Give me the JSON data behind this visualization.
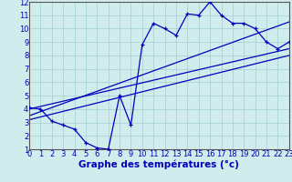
{
  "xlabel": "Graphe des températures (°c)",
  "background_color": "#d0ecec",
  "grid_color": "#a8d4d4",
  "line_color": "#0000bb",
  "spine_color": "#555555",
  "xlim": [
    0,
    23
  ],
  "ylim": [
    1,
    12
  ],
  "xticks": [
    0,
    1,
    2,
    3,
    4,
    5,
    6,
    7,
    8,
    9,
    10,
    11,
    12,
    13,
    14,
    15,
    16,
    17,
    18,
    19,
    20,
    21,
    22,
    23
  ],
  "yticks": [
    1,
    2,
    3,
    4,
    5,
    6,
    7,
    8,
    9,
    10,
    11,
    12
  ],
  "curve_x": [
    0,
    1,
    2,
    3,
    4,
    5,
    6,
    7,
    8,
    9,
    10,
    11,
    12,
    13,
    14,
    15,
    16,
    17,
    18,
    19,
    20,
    21,
    22,
    23
  ],
  "curve_y": [
    4.1,
    4.0,
    3.1,
    2.8,
    2.5,
    1.5,
    1.1,
    1.0,
    5.0,
    2.8,
    8.8,
    10.4,
    10.0,
    9.5,
    11.1,
    11.0,
    12.0,
    11.0,
    10.4,
    10.4,
    10.0,
    9.0,
    8.5,
    9.0
  ],
  "line1_x": [
    0,
    23
  ],
  "line1_y": [
    4.0,
    8.5
  ],
  "line2_x": [
    0,
    23
  ],
  "line2_y": [
    3.5,
    10.5
  ],
  "line3_x": [
    0,
    23
  ],
  "line3_y": [
    3.2,
    8.0
  ],
  "tick_fontsize": 6,
  "xlabel_fontsize": 7.5
}
